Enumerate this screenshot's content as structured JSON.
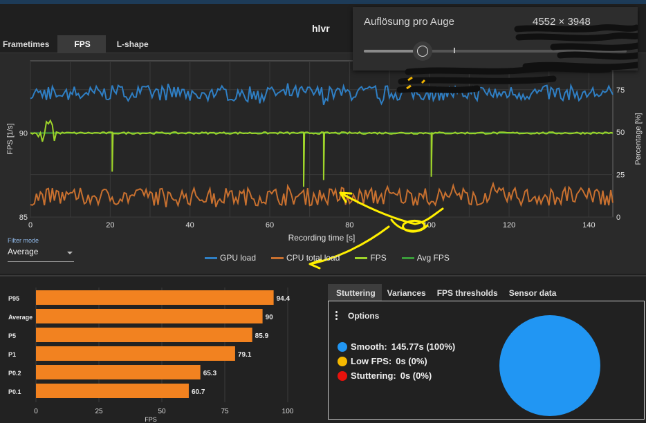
{
  "app": {
    "title": "hlvr"
  },
  "tabs_top": [
    {
      "label": "Frametimes"
    },
    {
      "label": "FPS"
    },
    {
      "label": "L-shape"
    }
  ],
  "overlay": {
    "label": "Auflösung pro Auge",
    "value": "4552 × 3948",
    "slider_fraction": 0.25
  },
  "filter": {
    "label": "Filter mode",
    "value": "Average"
  },
  "stats_tabs": [
    {
      "label": "Stuttering"
    },
    {
      "label": "Variances"
    },
    {
      "label": "FPS thresholds"
    },
    {
      "label": "Sensor data"
    }
  ],
  "stuttering": {
    "options_label": "Options",
    "rows": [
      {
        "name": "Smooth:",
        "value": "145.77s (100%)",
        "color": "#2196f3"
      },
      {
        "name": "Low FPS:",
        "value": "0s (0%)",
        "color": "#f5b800"
      },
      {
        "name": "Stuttering:",
        "value": "0s (0%)",
        "color": "#e8120c"
      }
    ]
  },
  "colors": {
    "gpu": "#2f7fc4",
    "cpu": "#c8702f",
    "fps": "#9ed42a",
    "avg": "#3a9c3a",
    "bar": "#f28220",
    "pie": "#2196f3"
  },
  "chart_data": [
    {
      "type": "line",
      "xlabel": "Recording time [s]",
      "ylabel": "FPS [1/s]",
      "ylabel_right": "Percentage [%]",
      "xlim": [
        0,
        146
      ],
      "ylim": [
        85,
        94.3
      ],
      "ylim_right": [
        0,
        92
      ],
      "xticks": [
        0,
        20,
        40,
        60,
        80,
        100,
        120,
        140
      ],
      "yticks": [
        85,
        90
      ],
      "yticks_right": [
        0,
        25,
        50,
        75
      ],
      "grid": true,
      "legend_position": "bottom",
      "series": [
        {
          "name": "GPU load",
          "axis": "right",
          "approx_mean": 73,
          "approx_range": [
            66,
            79
          ]
        },
        {
          "name": "CPU total load",
          "axis": "right",
          "approx_mean": 12,
          "approx_range": [
            5,
            20
          ]
        },
        {
          "name": "FPS",
          "axis": "left",
          "approx_value": 90,
          "dips": [
            {
              "x": 20.5,
              "y": 87.7
            },
            {
              "x": 68.5,
              "y": 86.8
            },
            {
              "x": 73.5,
              "y": 87.2
            },
            {
              "x": 100.5,
              "y": 87.4
            }
          ]
        },
        {
          "name": "Avg FPS",
          "axis": "left",
          "value": 90
        }
      ]
    },
    {
      "type": "bar",
      "orientation": "horizontal",
      "xlabel": "FPS",
      "xlim": [
        0,
        100
      ],
      "xticks": [
        0,
        25,
        50,
        75,
        100
      ],
      "categories": [
        "P95",
        "Average",
        "P5",
        "P1",
        "P0.2",
        "P0.1"
      ],
      "values": [
        94.4,
        90,
        85.9,
        79.1,
        65.3,
        60.7
      ],
      "labels": [
        "94.4",
        "90",
        "85.9",
        "79.1",
        "65.3",
        "60.7"
      ]
    },
    {
      "type": "pie",
      "categories": [
        "Smooth",
        "Low FPS",
        "Stuttering"
      ],
      "values": [
        100,
        0,
        0
      ]
    }
  ]
}
